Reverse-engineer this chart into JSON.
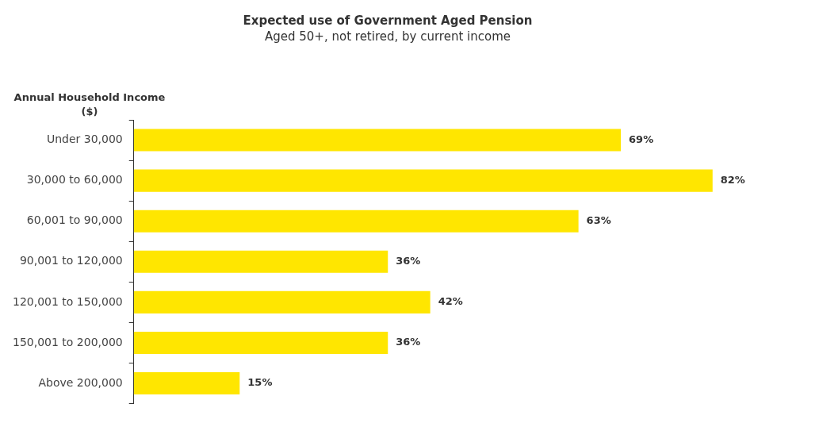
{
  "chart_data": {
    "type": "bar",
    "orientation": "horizontal",
    "title": "Expected use of Government Aged Pension",
    "subtitle": "Aged 50+, not retired, by current income",
    "ylabel": "Annual Household Income ($)",
    "categories": [
      "Under 30,000",
      "30,000 to 60,000",
      "60,001 to 90,000",
      "90,001 to 120,000",
      "120,001 to 150,000",
      "150,001 to 200,000",
      "Above 200,000"
    ],
    "values": [
      69,
      82,
      63,
      36,
      42,
      36,
      15
    ],
    "value_labels": [
      "69%",
      "82%",
      "63%",
      "36%",
      "42%",
      "36%",
      "15%"
    ],
    "color": "#ffe600",
    "legend": false
  }
}
